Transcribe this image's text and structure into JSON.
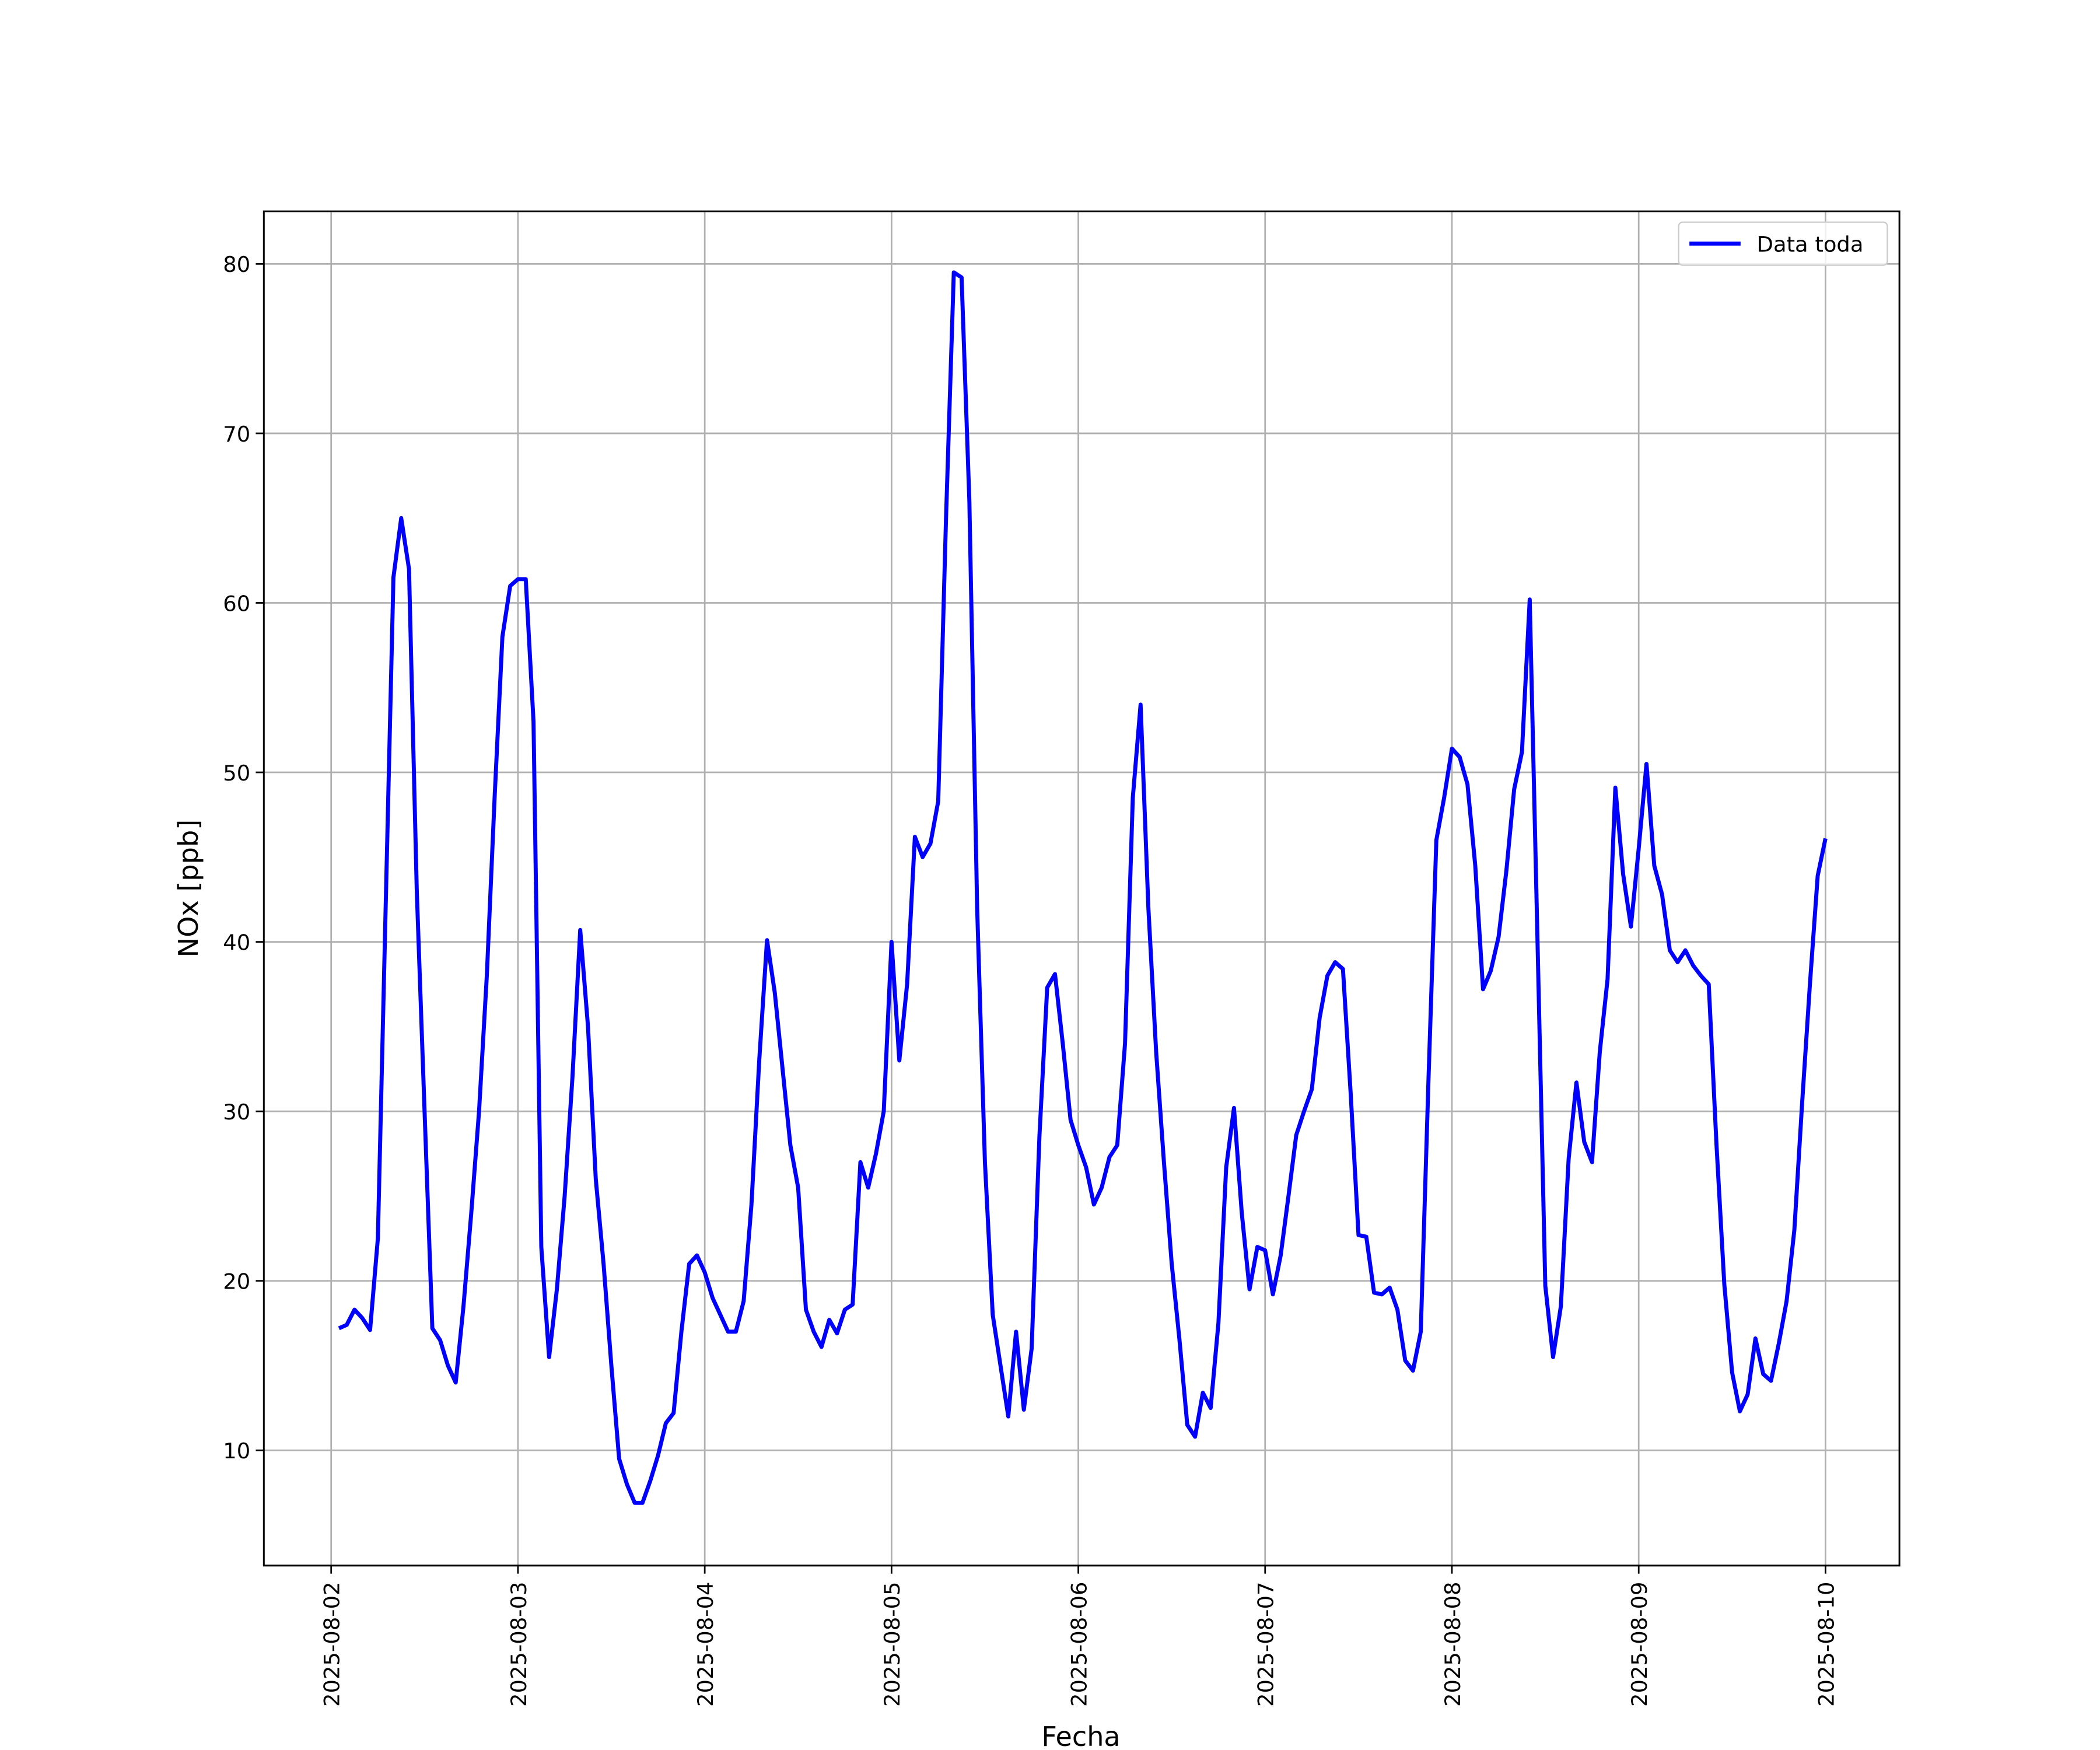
{
  "chart_data": {
    "type": "line",
    "xlabel": "Fecha",
    "ylabel": "NOx [ppb]",
    "x": [
      "2025-08-02 01:00",
      "2025-08-02 02:00",
      "2025-08-02 03:00",
      "2025-08-02 04:00",
      "2025-08-02 05:00",
      "2025-08-02 06:00",
      "2025-08-02 07:00",
      "2025-08-02 08:00",
      "2025-08-02 09:00",
      "2025-08-02 10:00",
      "2025-08-02 11:00",
      "2025-08-02 12:00",
      "2025-08-02 13:00",
      "2025-08-02 14:00",
      "2025-08-02 15:00",
      "2025-08-02 16:00",
      "2025-08-02 17:00",
      "2025-08-02 18:00",
      "2025-08-02 19:00",
      "2025-08-02 20:00",
      "2025-08-02 21:00",
      "2025-08-02 22:00",
      "2025-08-02 23:00",
      "2025-08-03 00:00",
      "2025-08-03 01:00",
      "2025-08-03 02:00",
      "2025-08-03 03:00",
      "2025-08-03 04:00",
      "2025-08-03 05:00",
      "2025-08-03 06:00",
      "2025-08-03 07:00",
      "2025-08-03 08:00",
      "2025-08-03 09:00",
      "2025-08-03 10:00",
      "2025-08-03 11:00",
      "2025-08-03 12:00",
      "2025-08-03 13:00",
      "2025-08-03 14:00",
      "2025-08-03 15:00",
      "2025-08-03 16:00",
      "2025-08-03 17:00",
      "2025-08-03 18:00",
      "2025-08-03 19:00",
      "2025-08-03 20:00",
      "2025-08-03 21:00",
      "2025-08-03 22:00",
      "2025-08-03 23:00",
      "2025-08-04 00:00",
      "2025-08-04 01:00",
      "2025-08-04 02:00",
      "2025-08-04 03:00",
      "2025-08-04 04:00",
      "2025-08-04 05:00",
      "2025-08-04 06:00",
      "2025-08-04 07:00",
      "2025-08-04 08:00",
      "2025-08-04 09:00",
      "2025-08-04 10:00",
      "2025-08-04 11:00",
      "2025-08-04 12:00",
      "2025-08-04 13:00",
      "2025-08-04 14:00",
      "2025-08-04 15:00",
      "2025-08-04 16:00",
      "2025-08-04 17:00",
      "2025-08-04 18:00",
      "2025-08-04 19:00",
      "2025-08-04 20:00",
      "2025-08-04 21:00",
      "2025-08-04 22:00",
      "2025-08-04 23:00",
      "2025-08-05 00:00",
      "2025-08-05 01:00",
      "2025-08-05 02:00",
      "2025-08-05 03:00",
      "2025-08-05 04:00",
      "2025-08-05 05:00",
      "2025-08-05 06:00",
      "2025-08-05 07:00",
      "2025-08-05 08:00",
      "2025-08-05 09:00",
      "2025-08-05 10:00",
      "2025-08-05 11:00",
      "2025-08-05 12:00",
      "2025-08-05 13:00",
      "2025-08-05 14:00",
      "2025-08-05 15:00",
      "2025-08-05 16:00",
      "2025-08-05 17:00",
      "2025-08-05 18:00",
      "2025-08-05 19:00",
      "2025-08-05 20:00",
      "2025-08-05 21:00",
      "2025-08-05 22:00",
      "2025-08-05 23:00",
      "2025-08-06 00:00",
      "2025-08-06 01:00",
      "2025-08-06 02:00",
      "2025-08-06 03:00",
      "2025-08-06 04:00",
      "2025-08-06 05:00",
      "2025-08-06 06:00",
      "2025-08-06 07:00",
      "2025-08-06 08:00",
      "2025-08-06 09:00",
      "2025-08-06 10:00",
      "2025-08-06 11:00",
      "2025-08-06 12:00",
      "2025-08-06 13:00",
      "2025-08-06 14:00",
      "2025-08-06 15:00",
      "2025-08-06 16:00",
      "2025-08-06 17:00",
      "2025-08-06 18:00",
      "2025-08-06 19:00",
      "2025-08-06 20:00",
      "2025-08-06 21:00",
      "2025-08-06 22:00",
      "2025-08-06 23:00",
      "2025-08-07 00:00",
      "2025-08-07 01:00",
      "2025-08-07 02:00",
      "2025-08-07 03:00",
      "2025-08-07 04:00",
      "2025-08-07 05:00",
      "2025-08-07 06:00",
      "2025-08-07 07:00",
      "2025-08-07 08:00",
      "2025-08-07 09:00",
      "2025-08-07 10:00",
      "2025-08-07 11:00",
      "2025-08-07 12:00",
      "2025-08-07 13:00",
      "2025-08-07 14:00",
      "2025-08-07 15:00",
      "2025-08-07 16:00",
      "2025-08-07 17:00",
      "2025-08-07 18:00",
      "2025-08-07 19:00",
      "2025-08-07 20:00",
      "2025-08-07 21:00",
      "2025-08-07 22:00",
      "2025-08-07 23:00",
      "2025-08-08 00:00",
      "2025-08-08 01:00",
      "2025-08-08 02:00",
      "2025-08-08 03:00",
      "2025-08-08 04:00",
      "2025-08-08 05:00",
      "2025-08-08 06:00",
      "2025-08-08 07:00",
      "2025-08-08 08:00",
      "2025-08-08 09:00",
      "2025-08-08 10:00",
      "2025-08-08 11:00",
      "2025-08-08 12:00",
      "2025-08-08 13:00",
      "2025-08-08 14:00",
      "2025-08-08 15:00",
      "2025-08-08 16:00",
      "2025-08-08 17:00",
      "2025-08-08 18:00",
      "2025-08-08 19:00",
      "2025-08-08 20:00",
      "2025-08-08 21:00",
      "2025-08-08 22:00",
      "2025-08-08 23:00",
      "2025-08-09 00:00",
      "2025-08-09 01:00",
      "2025-08-09 02:00",
      "2025-08-09 03:00",
      "2025-08-09 04:00",
      "2025-08-09 05:00",
      "2025-08-09 06:00",
      "2025-08-09 07:00",
      "2025-08-09 08:00",
      "2025-08-09 09:00",
      "2025-08-09 10:00",
      "2025-08-09 11:00",
      "2025-08-09 12:00",
      "2025-08-09 13:00",
      "2025-08-09 14:00",
      "2025-08-09 15:00",
      "2025-08-09 16:00",
      "2025-08-09 17:00",
      "2025-08-09 18:00",
      "2025-08-09 19:00",
      "2025-08-09 20:00",
      "2025-08-09 21:00",
      "2025-08-09 22:00",
      "2025-08-09 23:00",
      "2025-08-10 00:00"
    ],
    "series": [
      {
        "name": "Data toda",
        "color": "#0000ff",
        "values": [
          17.2,
          17.4,
          18.3,
          17.8,
          17.1,
          22.5,
          42,
          61.5,
          65,
          62,
          43,
          30,
          17.2,
          16.5,
          15,
          14,
          18.5,
          24,
          30,
          38,
          48.5,
          58,
          61,
          61.4,
          61.4,
          53,
          22,
          15.5,
          19.5,
          25,
          32,
          40.7,
          35,
          26,
          21,
          15,
          9.5,
          8,
          6.9,
          6.9,
          8.2,
          9.7,
          11.6,
          12.2,
          17,
          21,
          21.5,
          20.5,
          19,
          18,
          17,
          17,
          18.8,
          24.5,
          33,
          40.1,
          37,
          32.5,
          28,
          25.5,
          18.3,
          17,
          16.1,
          17.7,
          16.9,
          18.3,
          18.6,
          27,
          25.5,
          27.5,
          30,
          40,
          33,
          37.5,
          46.2,
          45,
          45.8,
          48.3,
          65,
          79.5,
          79.2,
          66,
          42,
          27,
          18,
          15,
          12,
          17,
          12.4,
          16,
          28.5,
          37.3,
          38.1,
          34,
          29.5,
          28,
          26.7,
          24.5,
          25.5,
          27.3,
          28,
          34,
          48.5,
          54,
          42,
          33.5,
          27,
          21,
          16.5,
          11.5,
          10.8,
          13.4,
          12.5,
          17.5,
          26.7,
          30.2,
          24,
          19.5,
          22,
          21.8,
          19.2,
          21.5,
          25,
          28.6,
          30,
          31.3,
          35.5,
          38,
          38.8,
          38.4,
          31,
          22.7,
          22.6,
          19.3,
          19.2,
          19.6,
          18.3,
          15.3,
          14.7,
          17,
          32,
          46,
          48.5,
          51.4,
          50.9,
          49.3,
          44.5,
          37.2,
          38.3,
          40.3,
          44.2,
          49,
          51.2,
          60.2,
          40,
          19.7,
          15.5,
          18.5,
          27.2,
          31.7,
          28.2,
          27,
          33.5,
          37.8,
          49.1,
          44,
          40.9,
          45.5,
          50.5,
          44.5,
          42.8,
          39.5,
          38.8,
          39.5,
          38.6,
          38,
          37.5,
          28,
          19.8,
          14.6,
          12.3,
          13.3,
          16.6,
          14.5,
          14.1,
          16.3,
          18.8,
          23,
          30.5,
          37.5,
          43.9,
          46.1
        ]
      }
    ],
    "xlim": [
      "2025-08-01 15:21",
      "2025-08-10 09:30"
    ],
    "xticks": [
      "2025-08-02",
      "2025-08-03",
      "2025-08-04",
      "2025-08-05",
      "2025-08-06",
      "2025-08-07",
      "2025-08-08",
      "2025-08-09",
      "2025-08-10"
    ],
    "ylim": [
      3.2,
      83.1
    ],
    "yticks": [
      10,
      20,
      30,
      40,
      50,
      60,
      70,
      80
    ],
    "grid": true,
    "legend": "upper right"
  }
}
